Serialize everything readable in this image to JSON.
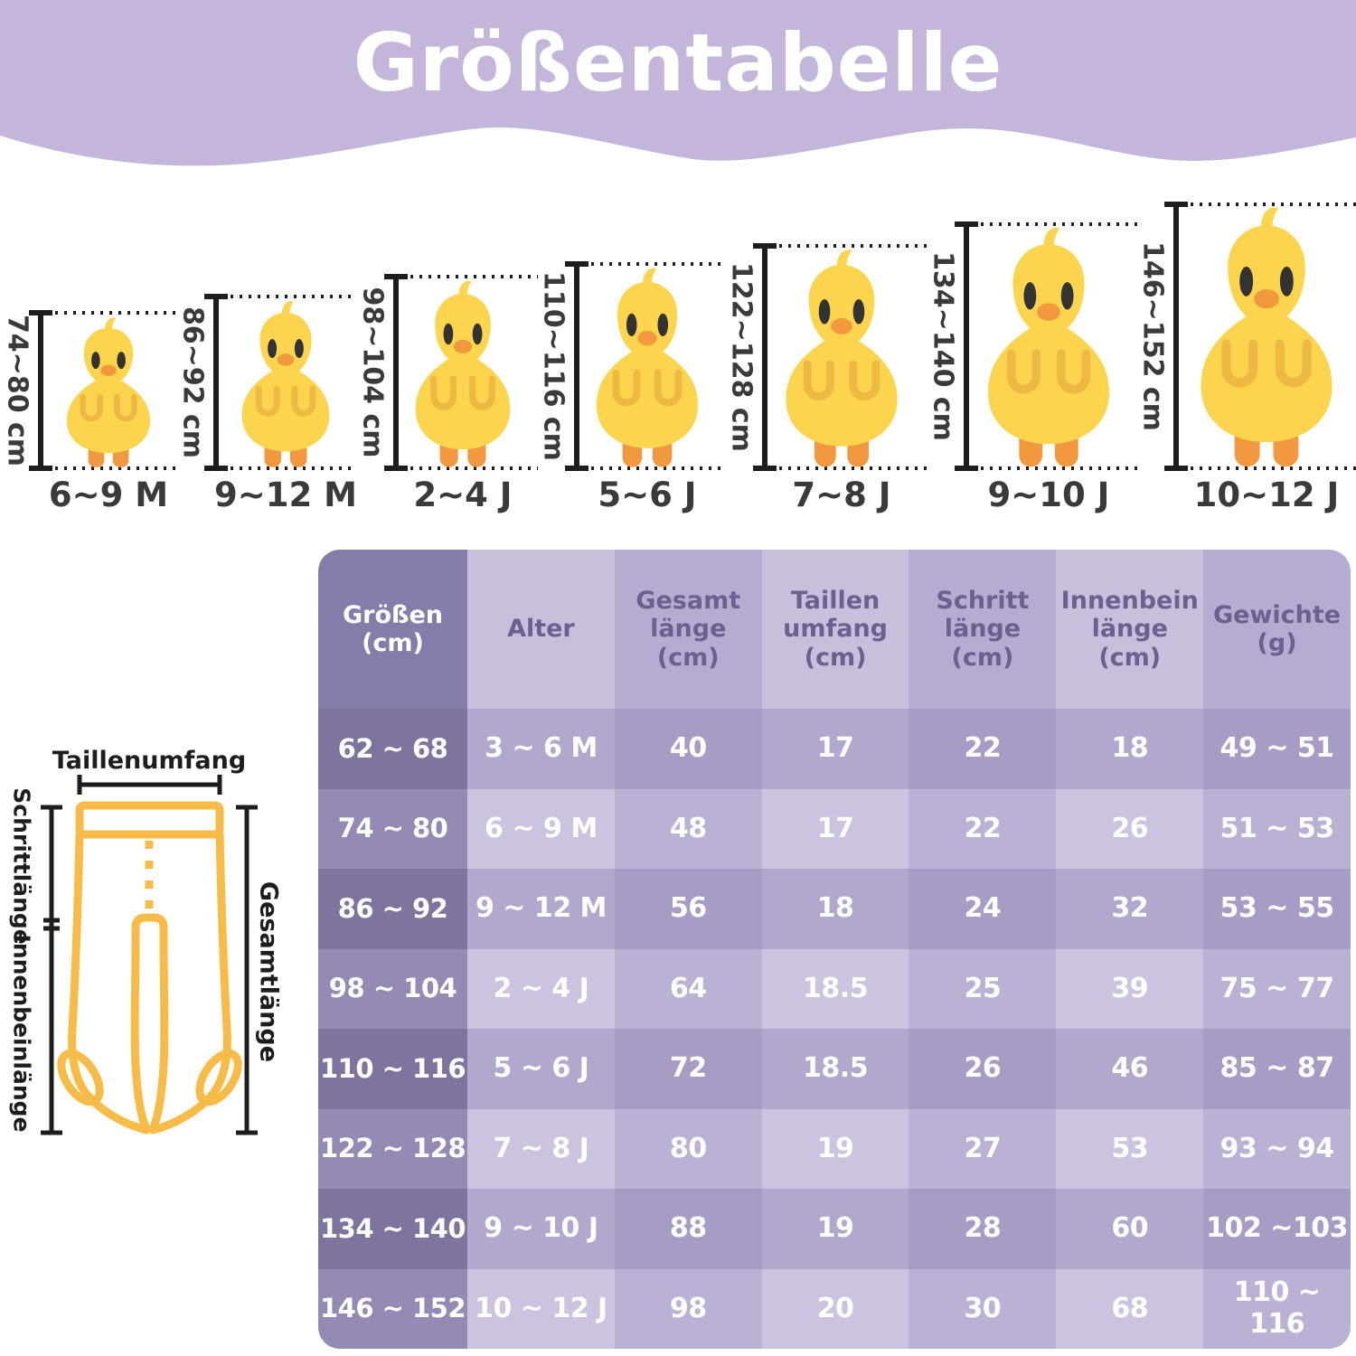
{
  "title": "Größentabelle",
  "colors": {
    "header_band": "#C4B6DA",
    "title_text": "#FFFFFF",
    "chick_body_yellow": "#FCD44E",
    "chick_wing_yellow": "#EDB943",
    "chick_beak_orange": "#F2983E",
    "chick_eye": "#333333",
    "measure_line_black": "#1D1D1D",
    "label_text": "#3A3A3A",
    "tights_outline_yellow": "#F7BC47",
    "table_first_col_dark": "#7F749E",
    "table_cell_light": "#CCC3E0",
    "table_cell_dark": "#A89CC5",
    "table_header_text": "#6B6190",
    "table_cell_text": "#FFFFFF"
  },
  "chicks": {
    "items": [
      {
        "height_label": "74~80 cm",
        "age": "6~9 M"
      },
      {
        "height_label": "86~92 cm",
        "age": "9~12 M"
      },
      {
        "height_label": "98~104 cm",
        "age": "2~4 J"
      },
      {
        "height_label": "110~116 cm",
        "age": "5~6 J"
      },
      {
        "height_label": "122~128 cm",
        "age": "7~8 J"
      },
      {
        "height_label": "134~140 cm",
        "age": "9~10 J"
      },
      {
        "height_label": "146~152 cm",
        "age": "10~12 J"
      }
    ]
  },
  "diagram": {
    "waist_label": "Taillenumfang",
    "crotch_label": "Schrittlänge",
    "inseam_label": "Innenbeinlänge",
    "total_label": "Gesamtlänge"
  },
  "table": {
    "headers": [
      [
        "Größen",
        "(cm)"
      ],
      [
        "Alter"
      ],
      [
        "Gesamt",
        "länge",
        "(cm)"
      ],
      [
        "Taillen",
        "umfang",
        "(cm)"
      ],
      [
        "Schritt",
        "länge",
        "(cm)"
      ],
      [
        "Innenbein",
        "länge",
        "(cm)"
      ],
      [
        "Gewichte",
        "(g)"
      ]
    ],
    "rows": [
      [
        "62 ~ 68",
        "3 ~ 6 M",
        "40",
        "17",
        "22",
        "18",
        "49 ~ 51"
      ],
      [
        "74 ~ 80",
        "6 ~ 9 M",
        "48",
        "17",
        "22",
        "26",
        "51 ~ 53"
      ],
      [
        "86 ~ 92",
        "9 ~ 12 M",
        "56",
        "18",
        "24",
        "32",
        "53 ~ 55"
      ],
      [
        "98 ~ 104",
        "2 ~ 4 J",
        "64",
        "18.5",
        "25",
        "39",
        "75 ~ 77"
      ],
      [
        "110 ~ 116",
        "5 ~ 6 J",
        "72",
        "18.5",
        "26",
        "46",
        "85 ~ 87"
      ],
      [
        "122 ~ 128",
        "7 ~ 8 J",
        "80",
        "19",
        "27",
        "53",
        "93 ~ 94"
      ],
      [
        "134 ~ 140",
        "9 ~ 10 J",
        "88",
        "19",
        "28",
        "60",
        "102 ~103"
      ],
      [
        "146 ~ 152",
        "10 ~ 12 J",
        "98",
        "20",
        "30",
        "68",
        "110 ~ 116"
      ]
    ]
  },
  "chart_data": {
    "type": "table",
    "title": "Größentabelle",
    "columns": [
      "Größen (cm)",
      "Alter",
      "Gesamtlänge (cm)",
      "Taillenumfang (cm)",
      "Schrittlänge (cm)",
      "Innenbeinlänge (cm)",
      "Gewichte (g)"
    ],
    "rows": [
      [
        "62 ~ 68",
        "3 ~ 6 M",
        40,
        17,
        22,
        18,
        "49 ~ 51"
      ],
      [
        "74 ~ 80",
        "6 ~ 9 M",
        48,
        17,
        22,
        26,
        "51 ~ 53"
      ],
      [
        "86 ~ 92",
        "9 ~ 12 M",
        56,
        18,
        24,
        32,
        "53 ~ 55"
      ],
      [
        "98 ~ 104",
        "2 ~ 4 J",
        64,
        18.5,
        25,
        39,
        "75 ~ 77"
      ],
      [
        "110 ~ 116",
        "5 ~ 6 J",
        72,
        18.5,
        26,
        46,
        "85 ~ 87"
      ],
      [
        "122 ~ 128",
        "7 ~ 8 J",
        80,
        19,
        27,
        53,
        "93 ~ 94"
      ],
      [
        "134 ~ 140",
        "9 ~ 10 J",
        88,
        19,
        28,
        60,
        "102 ~103"
      ],
      [
        "146 ~ 152",
        "10 ~ 12 J",
        98,
        20,
        30,
        68,
        "110 ~ 116"
      ]
    ]
  }
}
